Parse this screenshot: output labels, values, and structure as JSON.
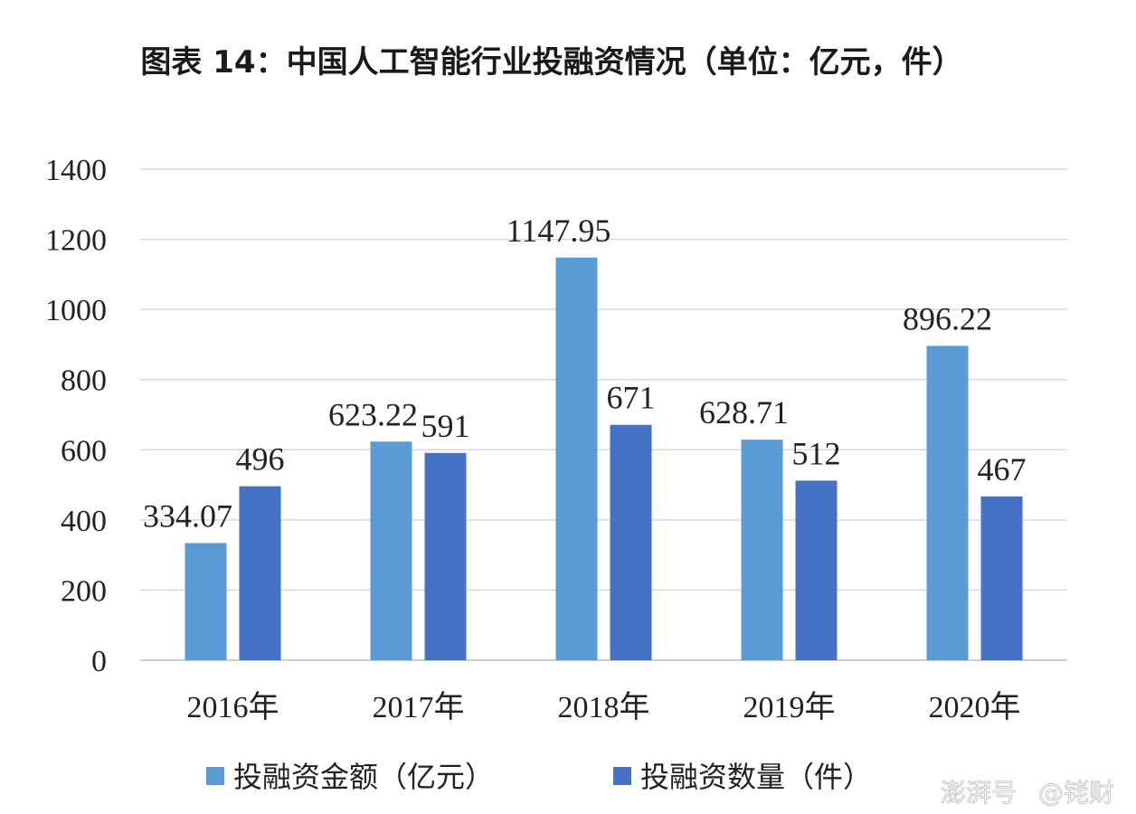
{
  "chart_data": {
    "type": "bar",
    "title": "图表 14：中国人工智能行业投融资情况（单位：亿元，件）",
    "categories": [
      "2016年",
      "2017年",
      "2018年",
      "2019年",
      "2020年"
    ],
    "series": [
      {
        "name": "投融资金额（亿元）",
        "values": [
          334.07,
          623.22,
          1147.95,
          628.71,
          896.22
        ],
        "labels": [
          "334.07",
          "623.22",
          "1147.95",
          "628.71",
          "896.22"
        ],
        "color": "#5b9bd5"
      },
      {
        "name": "投融资数量（件）",
        "values": [
          496,
          591,
          671,
          512,
          467
        ],
        "labels": [
          "496",
          "591",
          "671",
          "512",
          "467"
        ],
        "color": "#4472c4"
      }
    ],
    "yticks": [
      "0",
      "200",
      "400",
      "600",
      "800",
      "1000",
      "1200",
      "1400"
    ],
    "ylim": [
      0,
      1400
    ],
    "grid": true,
    "legend_position": "bottom"
  },
  "watermark": {
    "left": "澎湃号",
    "right": "@铑财"
  }
}
